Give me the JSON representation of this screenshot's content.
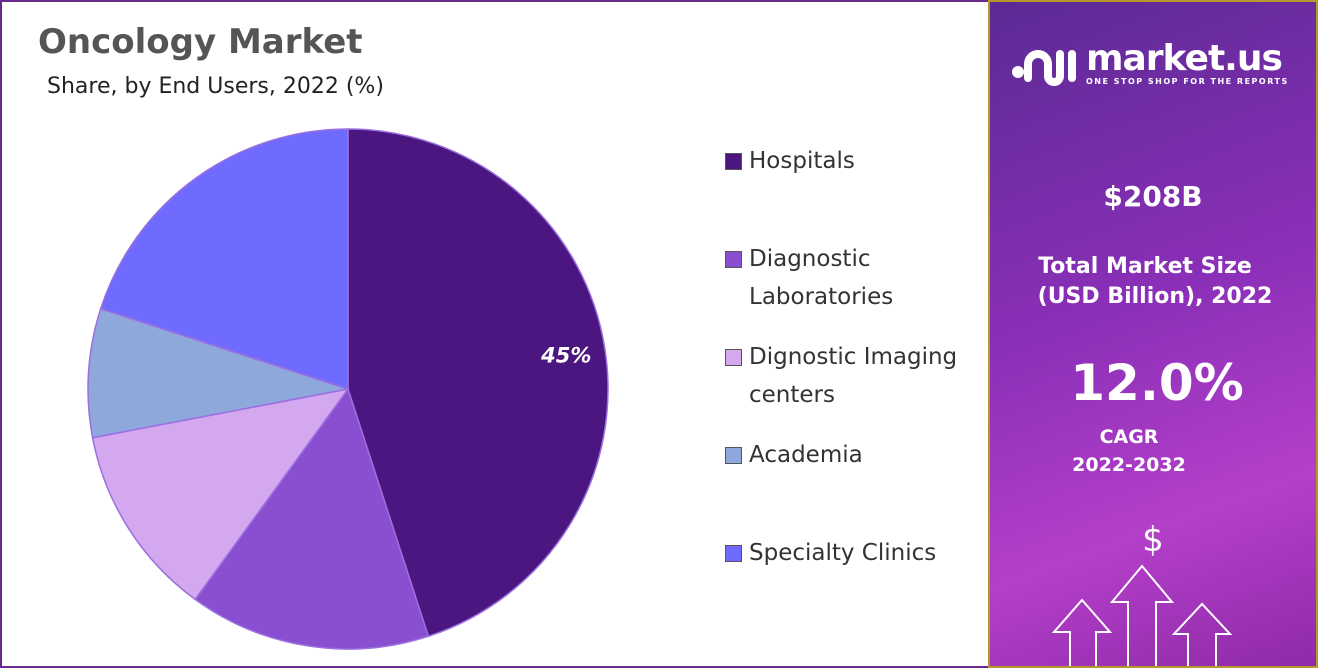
{
  "chart_data": {
    "type": "pie",
    "title": "Oncology Market",
    "subtitle": "Share, by End Users, 2022 (%)",
    "categories": [
      "Hospitals",
      "Diagnostic Laboratories",
      "Dignostic Imaging centers",
      "Academia",
      "Specialty Clinics"
    ],
    "values": [
      45,
      15,
      12,
      8,
      20
    ],
    "colors": [
      "#4b1680",
      "#8a4fd0",
      "#d4a8ee",
      "#8fa8dc",
      "#6f6bff"
    ],
    "data_labels": [
      "45%",
      "",
      "",
      "",
      ""
    ],
    "legend_position": "right",
    "legend": [
      {
        "lines": [
          "Hospitals"
        ]
      },
      {
        "lines": [
          "Diagnostic",
          "Laboratories"
        ]
      },
      {
        "lines": [
          "Dignostic Imaging",
          "centers"
        ]
      },
      {
        "lines": [
          "Academia"
        ]
      },
      {
        "lines": [
          "Specialty Clinics"
        ]
      }
    ]
  },
  "panel": {
    "brand": "market.us",
    "tagline": "ONE STOP SHOP FOR THE REPORTS",
    "market_size": "$208B",
    "market_size_label_1": "Total Market Size",
    "market_size_label_2": "(USD Billion), 2022",
    "cagr": "12.0%",
    "cagr_label": "CAGR",
    "cagr_period": "2022-2032",
    "currency_symbol": "$"
  }
}
